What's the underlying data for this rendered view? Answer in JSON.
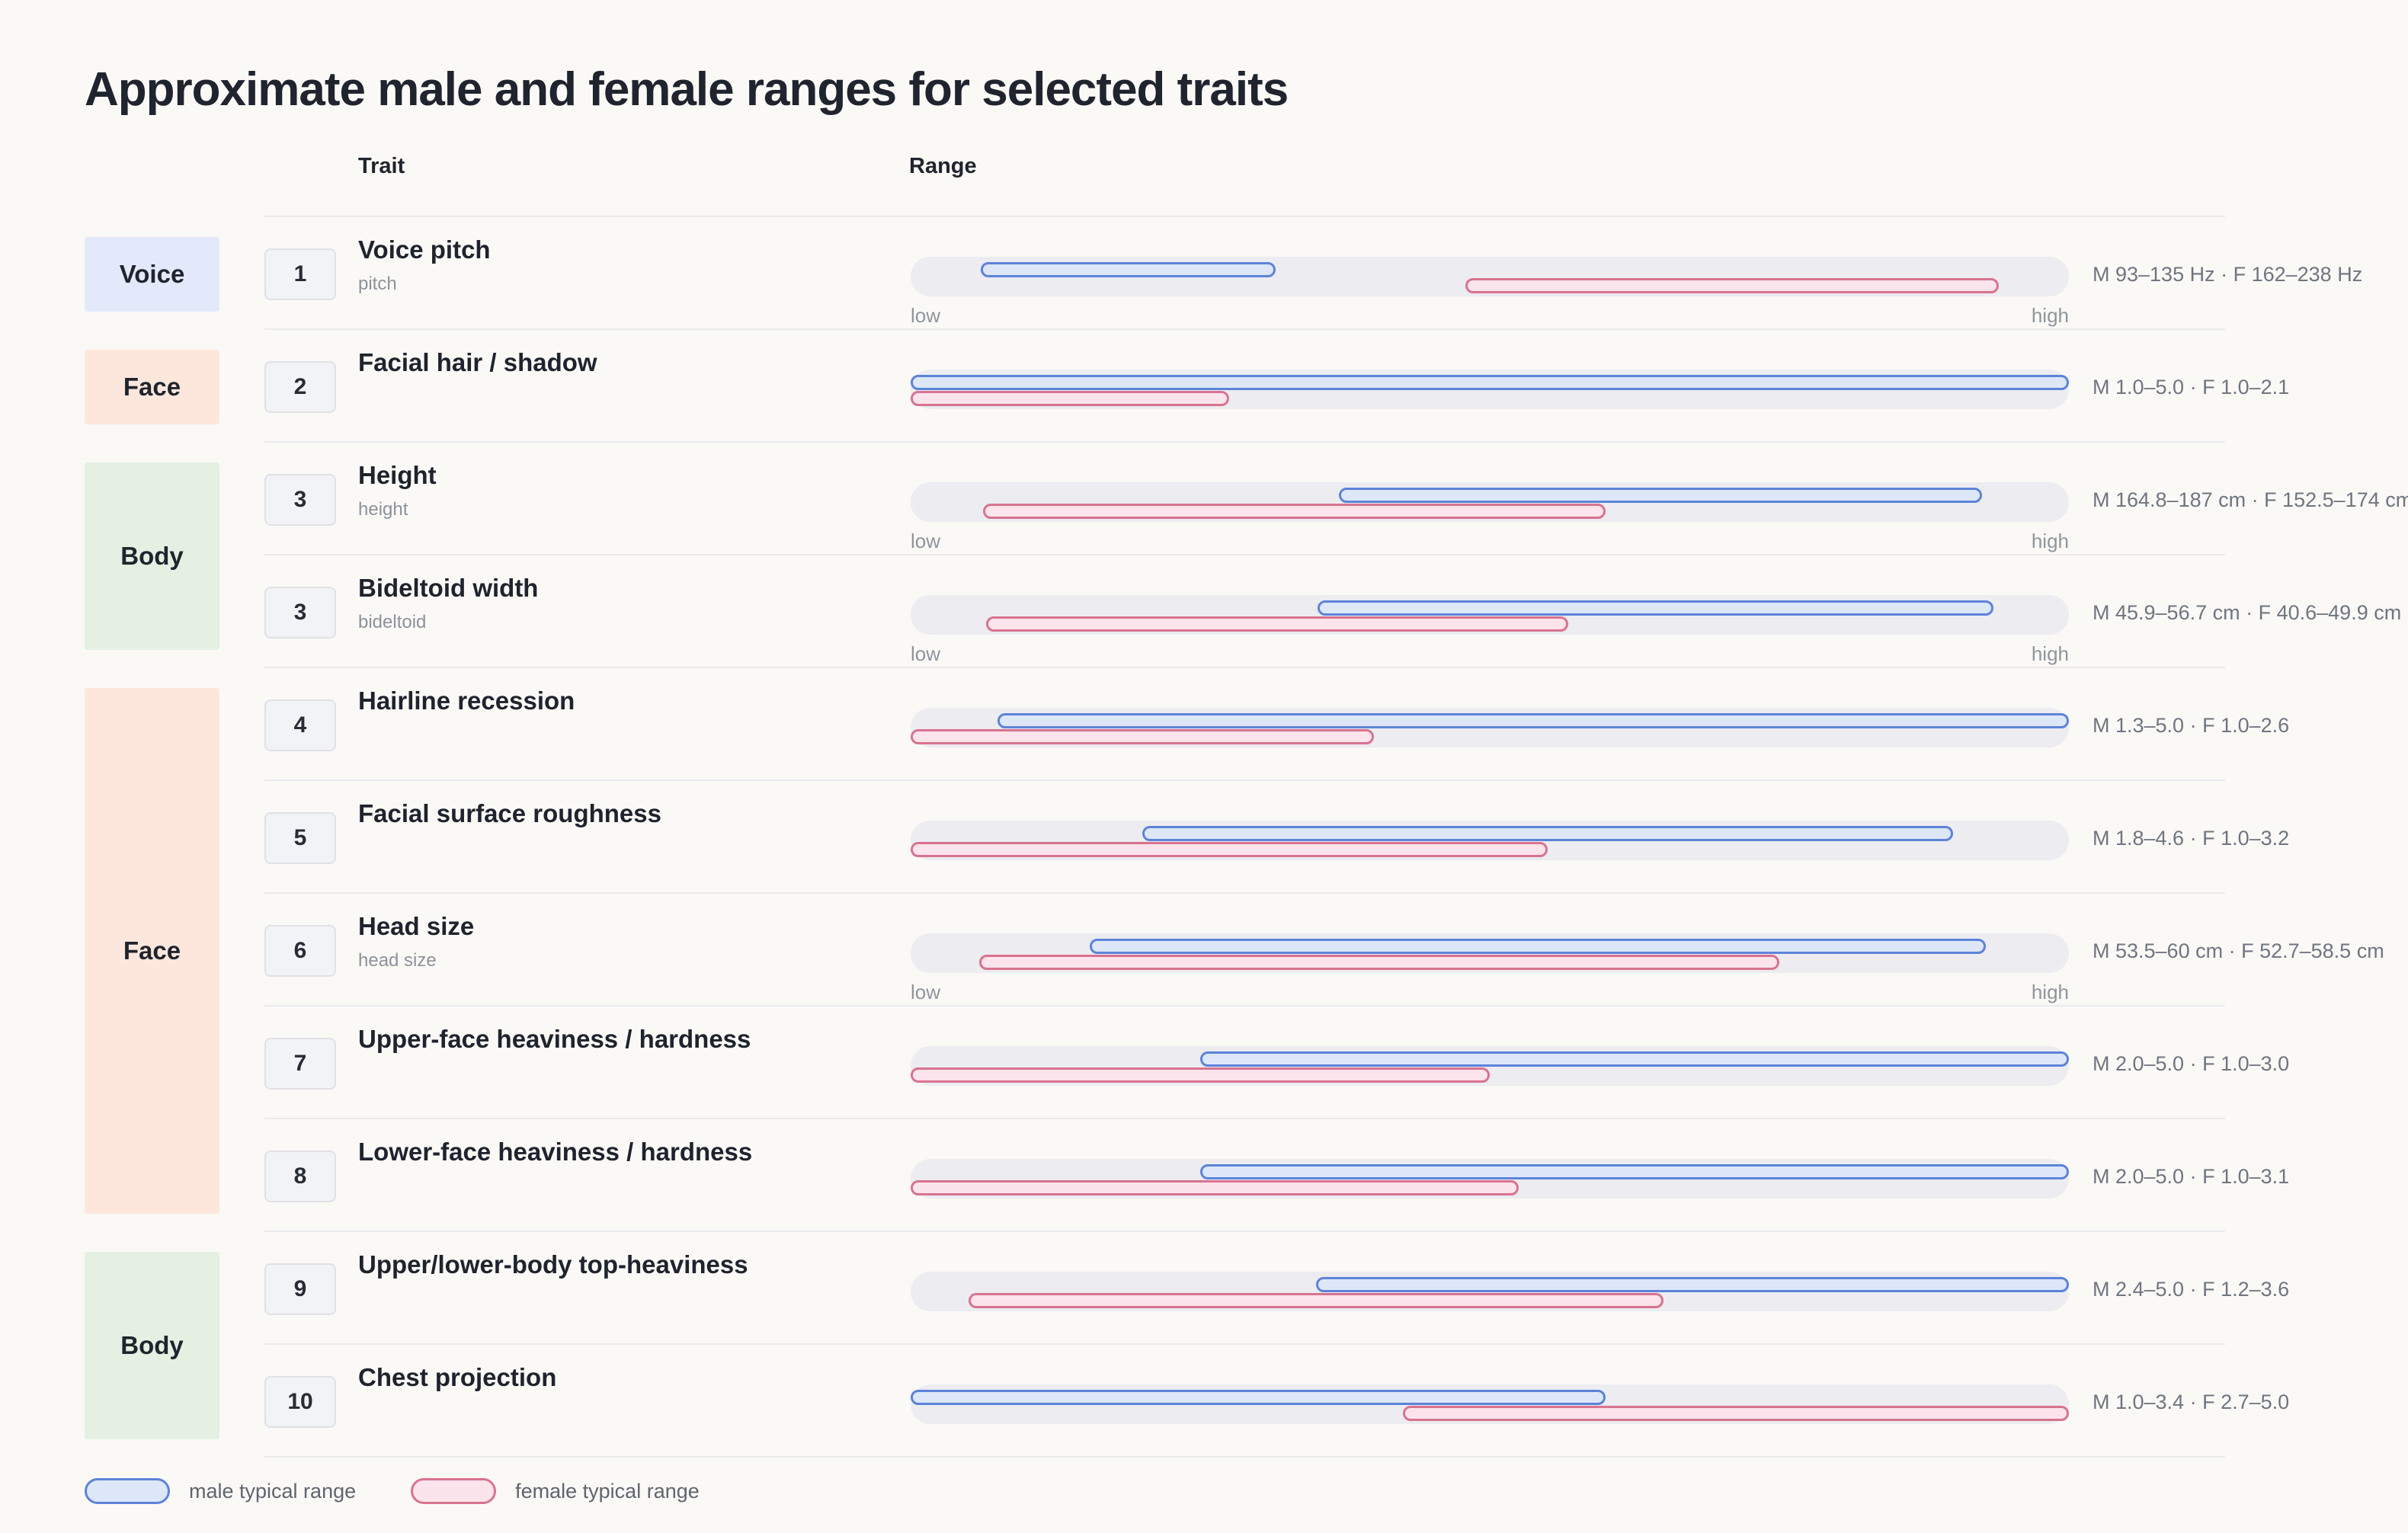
{
  "title": "Approximate male and female ranges for selected traits",
  "columns": {
    "trait": "Trait",
    "range": "Range"
  },
  "axis_labels": {
    "low": "low",
    "high": "high"
  },
  "legend": {
    "male_label": "male typical range",
    "female_label": "female typical range"
  },
  "colors": {
    "page_bg": "#faf9f6",
    "text_dark": "#1f242e",
    "text_muted": "#6f7580",
    "text_faint": "#8f959c",
    "male_fill": "#dde7f8",
    "male_border": "#5d83d9",
    "female_fill": "#fbe4ec",
    "female_border": "#d8738f",
    "track": "#ececf1",
    "separator": "#eaeaed",
    "badge_voice_blue": "#e3e9fa",
    "badge_face_peach": "#fde7dc",
    "badge_body_green": "#e3f0e2",
    "number_badge_bg": "#f2f3f6",
    "number_badge_border": "#e0e1e7"
  },
  "categories": [
    {
      "label": "Voice",
      "tone": "blue",
      "row_span": [
        1,
        1
      ]
    },
    {
      "label": "Face",
      "tone": "peach",
      "row_span": [
        2,
        2
      ]
    },
    {
      "label": "Body",
      "tone": "green",
      "row_span": [
        3,
        4
      ]
    },
    {
      "label": "Face",
      "tone": "peach",
      "row_span": [
        5,
        9
      ]
    },
    {
      "label": "Body",
      "tone": "green",
      "row_span": [
        10,
        11
      ]
    }
  ],
  "chart_data": {
    "type": "bar",
    "orientation": "horizontal-range",
    "legend_position": "bottom-left",
    "series": [
      "male typical range",
      "female typical range"
    ],
    "rows": [
      {
        "num": "1",
        "trait": "Voice pitch",
        "subtitle": "pitch",
        "unit": "Hz",
        "axis_min": 83,
        "axis_max": 248,
        "male_range": [
          93,
          135
        ],
        "female_range": [
          162,
          238
        ],
        "show_low_high": true,
        "label": "M 93–135 Hz · F 162–238 Hz"
      },
      {
        "num": "2",
        "trait": "Facial hair / shadow",
        "subtitle": "",
        "unit": "",
        "axis_min": 1,
        "axis_max": 5,
        "male_range": [
          1.0,
          5.0
        ],
        "female_range": [
          1.0,
          2.1
        ],
        "show_low_high": false,
        "label": "M 1.0–5.0 · F 1.0–2.1"
      },
      {
        "num": "3",
        "trait": "Height",
        "subtitle": "height",
        "unit": "cm",
        "axis_min": 150,
        "axis_max": 190,
        "male_range": [
          164.8,
          187
        ],
        "female_range": [
          152.5,
          174
        ],
        "show_low_high": true,
        "label": "M 164.8–187 cm · F 152.5–174 cm"
      },
      {
        "num": "3",
        "trait": "Bideltoid width",
        "subtitle": "bideltoid",
        "unit": "cm",
        "axis_min": 39.4,
        "axis_max": 57.9,
        "male_range": [
          45.9,
          56.7
        ],
        "female_range": [
          40.6,
          49.9
        ],
        "show_low_high": true,
        "label": "M 45.9–56.7 cm · F 40.6–49.9 cm"
      },
      {
        "num": "4",
        "trait": "Hairline recession",
        "subtitle": "",
        "unit": "",
        "axis_min": 1,
        "axis_max": 5,
        "male_range": [
          1.3,
          5.0
        ],
        "female_range": [
          1.0,
          2.6
        ],
        "show_low_high": false,
        "label": "M 1.3–5.0 · F 1.0–2.6"
      },
      {
        "num": "5",
        "trait": "Facial surface roughness",
        "subtitle": "",
        "unit": "",
        "axis_min": 1,
        "axis_max": 5,
        "male_range": [
          1.8,
          4.6
        ],
        "female_range": [
          1.0,
          3.2
        ],
        "show_low_high": false,
        "label": "M 1.8–4.6 · F 1.0–3.2"
      },
      {
        "num": "6",
        "trait": "Head size",
        "subtitle": "head size",
        "unit": "cm",
        "axis_min": 52.2,
        "axis_max": 60.6,
        "male_range": [
          53.5,
          60
        ],
        "female_range": [
          52.7,
          58.5
        ],
        "show_low_high": true,
        "label": "M 53.5–60 cm · F 52.7–58.5 cm"
      },
      {
        "num": "7",
        "trait": "Upper-face heaviness / hardness",
        "subtitle": "",
        "unit": "",
        "axis_min": 1,
        "axis_max": 5,
        "male_range": [
          2.0,
          5.0
        ],
        "female_range": [
          1.0,
          3.0
        ],
        "show_low_high": false,
        "label": "M 2.0–5.0 · F 1.0–3.0"
      },
      {
        "num": "8",
        "trait": "Lower-face heaviness / hardness",
        "subtitle": "",
        "unit": "",
        "axis_min": 1,
        "axis_max": 5,
        "male_range": [
          2.0,
          5.0
        ],
        "female_range": [
          1.0,
          3.1
        ],
        "show_low_high": false,
        "label": "M 2.0–5.0 · F 1.0–3.1"
      },
      {
        "num": "9",
        "trait": "Upper/lower-body top-heaviness",
        "subtitle": "",
        "unit": "",
        "axis_min": 1,
        "axis_max": 5,
        "male_range": [
          2.4,
          5.0
        ],
        "female_range": [
          1.2,
          3.6
        ],
        "show_low_high": false,
        "label": "M 2.4–5.0 · F 1.2–3.6"
      },
      {
        "num": "10",
        "trait": "Chest projection",
        "subtitle": "",
        "unit": "",
        "axis_min": 1,
        "axis_max": 5,
        "male_range": [
          1.0,
          3.4
        ],
        "female_range": [
          2.7,
          5.0
        ],
        "show_low_high": false,
        "label": "M 1.0–3.4 · F 2.7–5.0"
      }
    ]
  }
}
